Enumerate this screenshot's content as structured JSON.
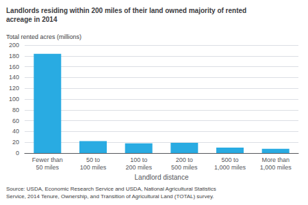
{
  "chart_data": {
    "type": "bar",
    "title": "Landlords residing within 200 miles of their land owned majority of rented\nacreage in 2014",
    "ylabel": "Total rented acres (millions)",
    "xlabel": "Landlord distance",
    "categories": [
      "Fewer than\n50 miles",
      "50 to\n100 miles",
      "100 to\n200 miles",
      "200 to\n500 miles",
      "500 to\n1,000 miles",
      "More than\n1,000 miles"
    ],
    "values": [
      184,
      22,
      18,
      19,
      10,
      8
    ],
    "color": "#29abe2",
    "ylim": [
      0,
      200
    ],
    "yticks": [
      0,
      20,
      40,
      60,
      80,
      100,
      120,
      140,
      160,
      180,
      200
    ],
    "grid": true,
    "annotations": [
      "Source: USDA, Economic Research Service and USDA, National Agricultural Statistics\nService, 2014 Tenure, Ownership, and Transition of Agricultural Land (TOTAL) survey."
    ]
  }
}
